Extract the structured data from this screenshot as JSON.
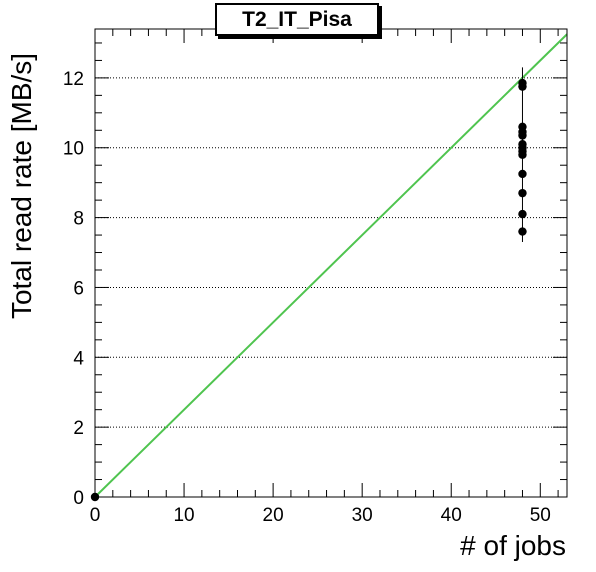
{
  "chart_data": {
    "type": "scatter",
    "title": "T2_IT_Pisa",
    "xlabel": "# of jobs",
    "ylabel": "Total read rate [MB/s]",
    "xlim": [
      0,
      53
    ],
    "ylim": [
      0,
      13.4
    ],
    "x_ticks": [
      0,
      10,
      20,
      30,
      40,
      50
    ],
    "y_ticks": [
      0,
      2,
      4,
      6,
      8,
      10,
      12
    ],
    "grid": "horizontal-dotted",
    "series": [
      {
        "type": "scatter",
        "color": "#000000",
        "points": [
          {
            "x": 0,
            "y": 0
          },
          {
            "x": 48,
            "y": 11.85
          },
          {
            "x": 48,
            "y": 11.75
          },
          {
            "x": 48,
            "y": 10.6
          },
          {
            "x": 48,
            "y": 10.45
          },
          {
            "x": 48,
            "y": 10.35
          },
          {
            "x": 48,
            "y": 10.1
          },
          {
            "x": 48,
            "y": 10.0
          },
          {
            "x": 48,
            "y": 9.9
          },
          {
            "x": 48,
            "y": 9.8
          },
          {
            "x": 48,
            "y": 9.25
          },
          {
            "x": 48,
            "y": 8.7
          },
          {
            "x": 48,
            "y": 8.1
          },
          {
            "x": 48,
            "y": 7.6
          }
        ],
        "error_bar": {
          "x": 48,
          "y_low": 7.3,
          "y_high": 12.3
        }
      },
      {
        "type": "line",
        "color": "#4fc44f",
        "points": [
          {
            "x": 0,
            "y": 0
          },
          {
            "x": 53,
            "y": 13.25
          }
        ]
      }
    ]
  }
}
